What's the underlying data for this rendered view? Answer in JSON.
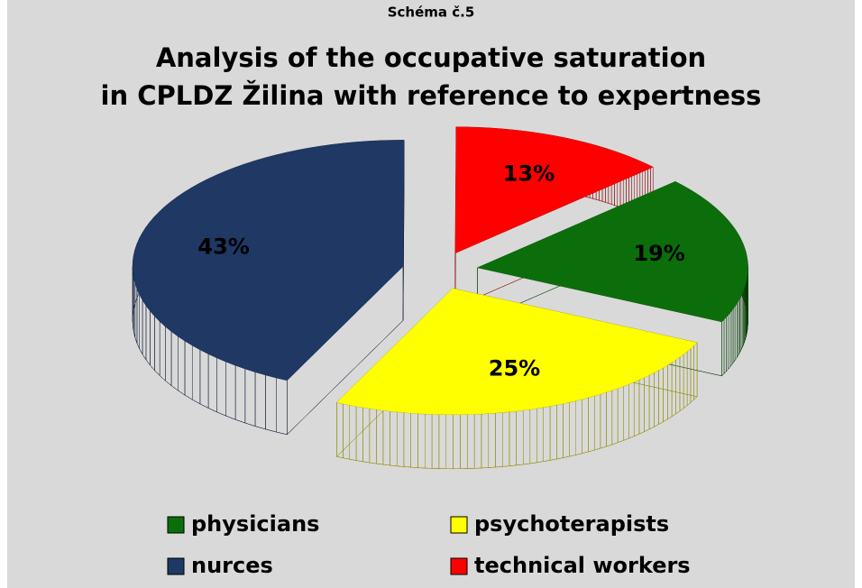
{
  "chart_data": {
    "type": "pie3d",
    "subtitle": "Schéma č.5",
    "title": [
      "Analysis of the occupative saturation",
      "in CPLDZ Žilina with reference to expertness"
    ],
    "categories": [
      "physicians",
      "psychoterapists",
      "nurces",
      "technical workers"
    ],
    "values": [
      19,
      25,
      43,
      13
    ],
    "value_labels": [
      "19%",
      "25%",
      "43%",
      "13%"
    ],
    "colors": [
      "#0b6e0b",
      "#ffff00",
      "#1f3864",
      "#ff0000"
    ],
    "legend": "bottom"
  }
}
